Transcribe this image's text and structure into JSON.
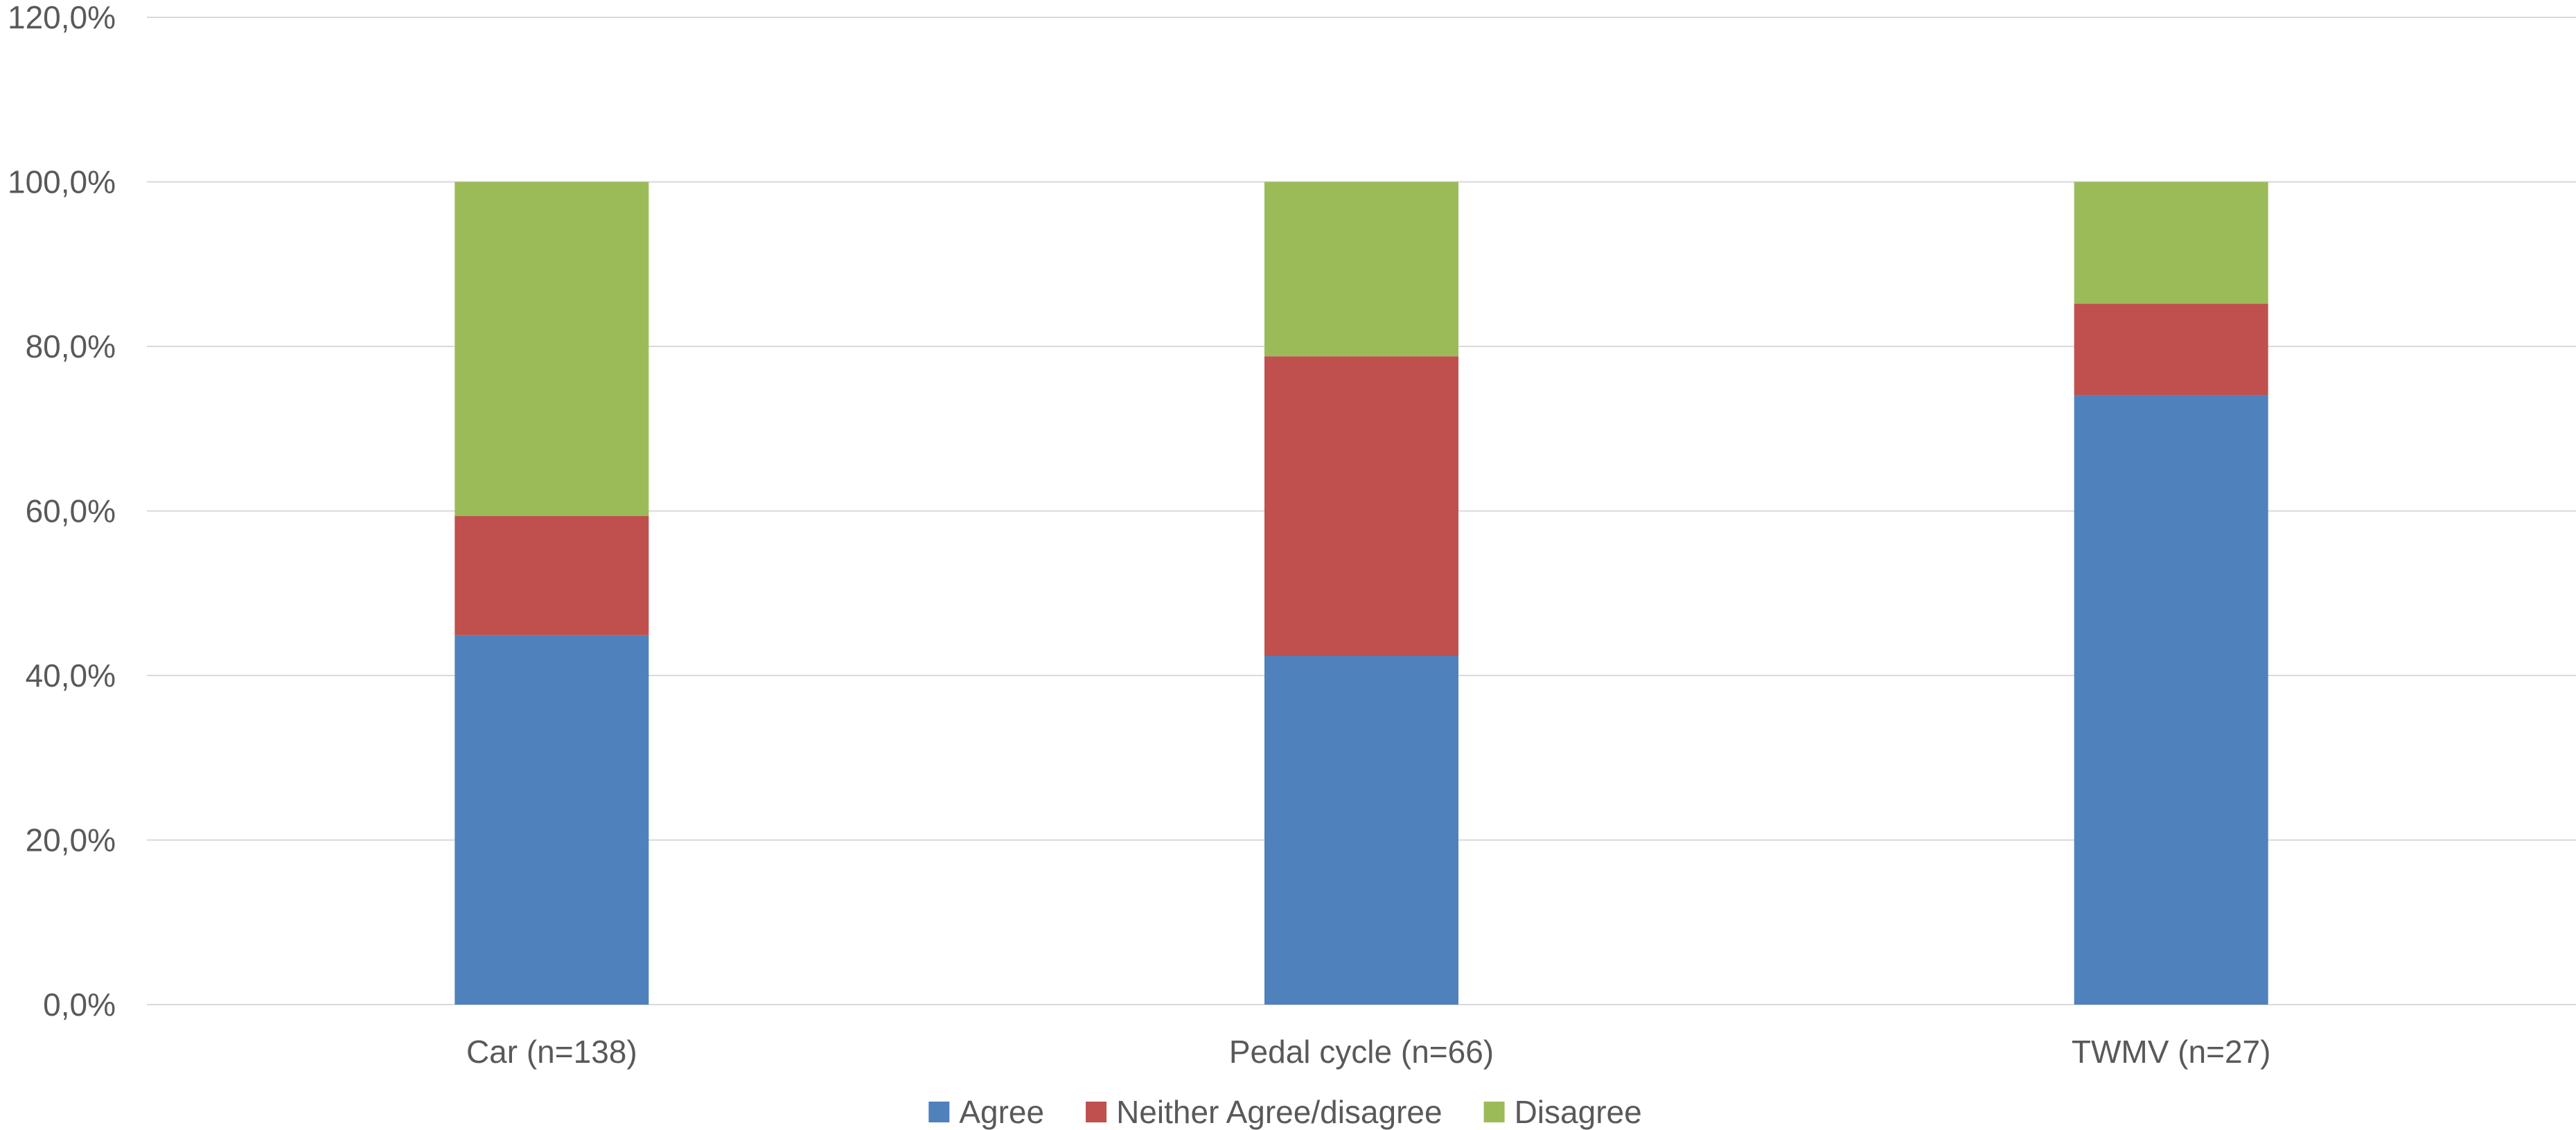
{
  "chart_data": {
    "type": "bar",
    "stacked": true,
    "title": "",
    "xlabel": "",
    "ylabel": "",
    "categories": [
      "Car (n=138)",
      "Pedal cycle (n=66)",
      "TWMV (n=27)"
    ],
    "series": [
      {
        "name": "Agree",
        "color": "#4f81bd",
        "values": [
          44.9,
          42.4,
          74.1
        ]
      },
      {
        "name": "Neither Agree/disagree",
        "color": "#c0504d",
        "values": [
          14.5,
          36.4,
          11.1
        ]
      },
      {
        "name": "Disagree",
        "color": "#9bbb59",
        "values": [
          40.6,
          21.2,
          14.8
        ]
      }
    ],
    "ylim": [
      0,
      120
    ],
    "yticks": [
      0,
      20,
      40,
      60,
      80,
      100,
      120
    ],
    "ytick_labels": [
      "0,0%",
      "20,0%",
      "40,0%",
      "60,0%",
      "80,0%",
      "100,0%",
      "120,0%"
    ],
    "grid": true,
    "legend_position": "bottom"
  }
}
